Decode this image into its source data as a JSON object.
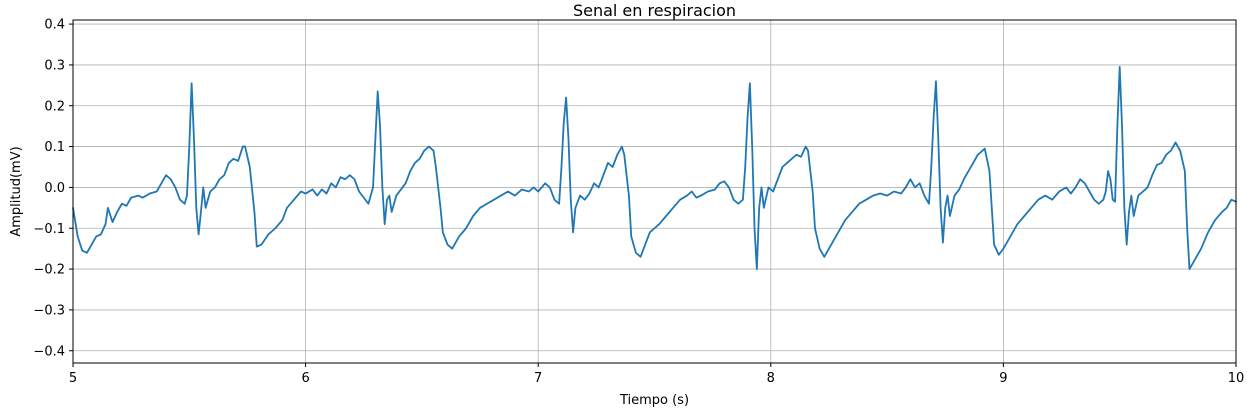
{
  "chart_data": {
    "type": "line",
    "title": "Senal en respiracion",
    "xlabel": "Tiempo (s)",
    "ylabel": "Amplitud(mV)",
    "xlim": [
      5,
      10
    ],
    "ylim": [
      -0.43,
      0.41
    ],
    "x_ticks": [
      5,
      6,
      7,
      8,
      9,
      10
    ],
    "x_tick_labels": [
      "5",
      "6",
      "7",
      "8",
      "9",
      "10"
    ],
    "y_ticks": [
      -0.4,
      -0.3,
      -0.2,
      -0.1,
      0.0,
      0.1,
      0.2,
      0.3,
      0.4
    ],
    "y_tick_labels": [
      "−0.4",
      "−0.3",
      "−0.2",
      "−0.1",
      "0.0",
      "0.1",
      "0.2",
      "0.3",
      "0.4"
    ],
    "grid": true,
    "line_color": "#1f77b4",
    "series": [
      {
        "points": [
          [
            5.0,
            -0.05
          ],
          [
            5.02,
            -0.12
          ],
          [
            5.04,
            -0.155
          ],
          [
            5.06,
            -0.16
          ],
          [
            5.08,
            -0.14
          ],
          [
            5.1,
            -0.12
          ],
          [
            5.12,
            -0.115
          ],
          [
            5.14,
            -0.09
          ],
          [
            5.15,
            -0.05
          ],
          [
            5.17,
            -0.085
          ],
          [
            5.19,
            -0.06
          ],
          [
            5.21,
            -0.04
          ],
          [
            5.23,
            -0.045
          ],
          [
            5.25,
            -0.025
          ],
          [
            5.28,
            -0.02
          ],
          [
            5.3,
            -0.025
          ],
          [
            5.33,
            -0.015
          ],
          [
            5.36,
            -0.01
          ],
          [
            5.38,
            0.01
          ],
          [
            5.4,
            0.03
          ],
          [
            5.42,
            0.02
          ],
          [
            5.44,
            0.0
          ],
          [
            5.46,
            -0.03
          ],
          [
            5.48,
            -0.04
          ],
          [
            5.49,
            -0.02
          ],
          [
            5.5,
            0.1
          ],
          [
            5.51,
            0.255
          ],
          [
            5.52,
            0.12
          ],
          [
            5.53,
            -0.05
          ],
          [
            5.54,
            -0.115
          ],
          [
            5.55,
            -0.06
          ],
          [
            5.56,
            0.0
          ],
          [
            5.57,
            -0.05
          ],
          [
            5.59,
            -0.01
          ],
          [
            5.61,
            0.0
          ],
          [
            5.63,
            0.02
          ],
          [
            5.65,
            0.03
          ],
          [
            5.67,
            0.06
          ],
          [
            5.69,
            0.07
          ],
          [
            5.71,
            0.065
          ],
          [
            5.73,
            0.1
          ],
          [
            5.74,
            0.1
          ],
          [
            5.76,
            0.05
          ],
          [
            5.78,
            -0.06
          ],
          [
            5.79,
            -0.145
          ],
          [
            5.81,
            -0.14
          ],
          [
            5.84,
            -0.115
          ],
          [
            5.87,
            -0.1
          ],
          [
            5.9,
            -0.08
          ],
          [
            5.92,
            -0.05
          ],
          [
            5.95,
            -0.03
          ],
          [
            5.98,
            -0.01
          ],
          [
            6.0,
            -0.015
          ],
          [
            6.03,
            -0.005
          ],
          [
            6.05,
            -0.02
          ],
          [
            6.07,
            -0.005
          ],
          [
            6.09,
            -0.015
          ],
          [
            6.11,
            0.01
          ],
          [
            6.13,
            0.0
          ],
          [
            6.15,
            0.025
          ],
          [
            6.17,
            0.02
          ],
          [
            6.19,
            0.03
          ],
          [
            6.21,
            0.02
          ],
          [
            6.23,
            -0.01
          ],
          [
            6.25,
            -0.025
          ],
          [
            6.27,
            -0.04
          ],
          [
            6.29,
            0.0
          ],
          [
            6.3,
            0.12
          ],
          [
            6.31,
            0.235
          ],
          [
            6.32,
            0.15
          ],
          [
            6.33,
            0.0
          ],
          [
            6.34,
            -0.09
          ],
          [
            6.35,
            -0.03
          ],
          [
            6.36,
            -0.02
          ],
          [
            6.37,
            -0.06
          ],
          [
            6.39,
            -0.02
          ],
          [
            6.41,
            -0.005
          ],
          [
            6.43,
            0.01
          ],
          [
            6.45,
            0.04
          ],
          [
            6.47,
            0.06
          ],
          [
            6.49,
            0.07
          ],
          [
            6.51,
            0.09
          ],
          [
            6.53,
            0.1
          ],
          [
            6.55,
            0.09
          ],
          [
            6.56,
            0.05
          ],
          [
            6.58,
            -0.05
          ],
          [
            6.59,
            -0.11
          ],
          [
            6.61,
            -0.14
          ],
          [
            6.63,
            -0.15
          ],
          [
            6.66,
            -0.12
          ],
          [
            6.69,
            -0.1
          ],
          [
            6.72,
            -0.07
          ],
          [
            6.75,
            -0.05
          ],
          [
            6.78,
            -0.04
          ],
          [
            6.81,
            -0.03
          ],
          [
            6.84,
            -0.02
          ],
          [
            6.87,
            -0.01
          ],
          [
            6.9,
            -0.02
          ],
          [
            6.93,
            -0.005
          ],
          [
            6.96,
            -0.01
          ],
          [
            6.98,
            0.0
          ],
          [
            7.0,
            -0.01
          ],
          [
            7.03,
            0.01
          ],
          [
            7.05,
            0.0
          ],
          [
            7.07,
            -0.03
          ],
          [
            7.09,
            -0.04
          ],
          [
            7.1,
            0.05
          ],
          [
            7.11,
            0.16
          ],
          [
            7.12,
            0.22
          ],
          [
            7.13,
            0.12
          ],
          [
            7.14,
            -0.03
          ],
          [
            7.15,
            -0.11
          ],
          [
            7.16,
            -0.05
          ],
          [
            7.18,
            -0.02
          ],
          [
            7.2,
            -0.03
          ],
          [
            7.22,
            -0.015
          ],
          [
            7.24,
            0.01
          ],
          [
            7.26,
            0.0
          ],
          [
            7.28,
            0.03
          ],
          [
            7.3,
            0.06
          ],
          [
            7.32,
            0.05
          ],
          [
            7.34,
            0.08
          ],
          [
            7.36,
            0.1
          ],
          [
            7.37,
            0.08
          ],
          [
            7.39,
            -0.02
          ],
          [
            7.4,
            -0.12
          ],
          [
            7.42,
            -0.16
          ],
          [
            7.44,
            -0.17
          ],
          [
            7.46,
            -0.14
          ],
          [
            7.48,
            -0.11
          ],
          [
            7.5,
            -0.1
          ],
          [
            7.52,
            -0.09
          ],
          [
            7.55,
            -0.07
          ],
          [
            7.58,
            -0.05
          ],
          [
            7.61,
            -0.03
          ],
          [
            7.64,
            -0.02
          ],
          [
            7.66,
            -0.01
          ],
          [
            7.68,
            -0.025
          ],
          [
            7.7,
            -0.02
          ],
          [
            7.73,
            -0.01
          ],
          [
            7.76,
            -0.005
          ],
          [
            7.78,
            0.01
          ],
          [
            7.8,
            0.015
          ],
          [
            7.82,
            0.0
          ],
          [
            7.84,
            -0.03
          ],
          [
            7.86,
            -0.04
          ],
          [
            7.88,
            -0.03
          ],
          [
            7.89,
            0.05
          ],
          [
            7.9,
            0.17
          ],
          [
            7.91,
            0.255
          ],
          [
            7.92,
            0.1
          ],
          [
            7.93,
            -0.1
          ],
          [
            7.94,
            -0.2
          ],
          [
            7.95,
            -0.05
          ],
          [
            7.96,
            0.0
          ],
          [
            7.97,
            -0.05
          ],
          [
            7.99,
            0.0
          ],
          [
            8.01,
            -0.01
          ],
          [
            8.03,
            0.02
          ],
          [
            8.05,
            0.05
          ],
          [
            8.07,
            0.06
          ],
          [
            8.09,
            0.07
          ],
          [
            8.11,
            0.08
          ],
          [
            8.13,
            0.075
          ],
          [
            8.15,
            0.1
          ],
          [
            8.16,
            0.09
          ],
          [
            8.18,
            -0.01
          ],
          [
            8.19,
            -0.1
          ],
          [
            8.21,
            -0.15
          ],
          [
            8.23,
            -0.17
          ],
          [
            8.26,
            -0.14
          ],
          [
            8.29,
            -0.11
          ],
          [
            8.32,
            -0.08
          ],
          [
            8.35,
            -0.06
          ],
          [
            8.38,
            -0.04
          ],
          [
            8.41,
            -0.03
          ],
          [
            8.44,
            -0.02
          ],
          [
            8.47,
            -0.015
          ],
          [
            8.5,
            -0.02
          ],
          [
            8.53,
            -0.01
          ],
          [
            8.56,
            -0.015
          ],
          [
            8.58,
            0.0
          ],
          [
            8.6,
            0.02
          ],
          [
            8.62,
            0.0
          ],
          [
            8.64,
            0.01
          ],
          [
            8.66,
            -0.02
          ],
          [
            8.68,
            -0.04
          ],
          [
            8.69,
            0.05
          ],
          [
            8.7,
            0.17
          ],
          [
            8.71,
            0.26
          ],
          [
            8.72,
            0.12
          ],
          [
            8.73,
            -0.05
          ],
          [
            8.74,
            -0.135
          ],
          [
            8.75,
            -0.05
          ],
          [
            8.76,
            -0.02
          ],
          [
            8.77,
            -0.07
          ],
          [
            8.79,
            -0.02
          ],
          [
            8.81,
            -0.005
          ],
          [
            8.83,
            0.02
          ],
          [
            8.85,
            0.04
          ],
          [
            8.87,
            0.06
          ],
          [
            8.89,
            0.08
          ],
          [
            8.91,
            0.09
          ],
          [
            8.92,
            0.095
          ],
          [
            8.94,
            0.04
          ],
          [
            8.95,
            -0.05
          ],
          [
            8.96,
            -0.14
          ],
          [
            8.98,
            -0.165
          ],
          [
            9.0,
            -0.15
          ],
          [
            9.03,
            -0.12
          ],
          [
            9.06,
            -0.09
          ],
          [
            9.09,
            -0.07
          ],
          [
            9.12,
            -0.05
          ],
          [
            9.15,
            -0.03
          ],
          [
            9.18,
            -0.02
          ],
          [
            9.21,
            -0.03
          ],
          [
            9.24,
            -0.01
          ],
          [
            9.27,
            0.0
          ],
          [
            9.29,
            -0.015
          ],
          [
            9.31,
            0.0
          ],
          [
            9.33,
            0.02
          ],
          [
            9.35,
            0.01
          ],
          [
            9.37,
            -0.01
          ],
          [
            9.39,
            -0.03
          ],
          [
            9.41,
            -0.04
          ],
          [
            9.43,
            -0.03
          ],
          [
            9.44,
            -0.01
          ],
          [
            9.45,
            0.04
          ],
          [
            9.46,
            0.02
          ],
          [
            9.47,
            -0.03
          ],
          [
            9.48,
            -0.035
          ],
          [
            9.49,
            0.15
          ],
          [
            9.5,
            0.295
          ],
          [
            9.51,
            0.15
          ],
          [
            9.52,
            -0.05
          ],
          [
            9.53,
            -0.14
          ],
          [
            9.54,
            -0.06
          ],
          [
            9.55,
            -0.02
          ],
          [
            9.56,
            -0.07
          ],
          [
            9.58,
            -0.02
          ],
          [
            9.6,
            -0.01
          ],
          [
            9.62,
            0.0
          ],
          [
            9.64,
            0.03
          ],
          [
            9.66,
            0.055
          ],
          [
            9.68,
            0.06
          ],
          [
            9.7,
            0.08
          ],
          [
            9.72,
            0.09
          ],
          [
            9.74,
            0.11
          ],
          [
            9.76,
            0.09
          ],
          [
            9.78,
            0.04
          ],
          [
            9.79,
            -0.1
          ],
          [
            9.8,
            -0.2
          ],
          [
            9.82,
            -0.18
          ],
          [
            9.85,
            -0.15
          ],
          [
            9.88,
            -0.11
          ],
          [
            9.91,
            -0.08
          ],
          [
            9.94,
            -0.06
          ],
          [
            9.96,
            -0.05
          ],
          [
            9.98,
            -0.03
          ],
          [
            10.0,
            -0.035
          ]
        ]
      }
    ]
  }
}
